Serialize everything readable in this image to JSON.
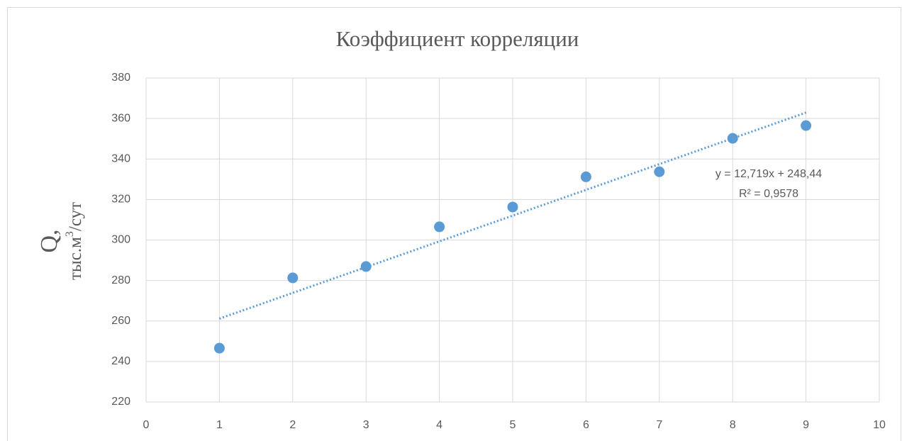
{
  "chart_data": {
    "type": "scatter",
    "title": "Коэффициент корреляции",
    "ylabel": [
      "Q,",
      "тыс.м",
      "3",
      "/сут"
    ],
    "series": [
      {
        "color": "#5b9bd5",
        "x": [
          1,
          2,
          3,
          4,
          5,
          6,
          7,
          8,
          9
        ],
        "values": [
          246.6,
          281.3,
          286.9,
          306.5,
          316.3,
          331.2,
          333.7,
          350.2,
          356.5
        ]
      }
    ],
    "trendline": {
      "slope": 12.719,
      "intercept": 248.44,
      "x": [
        1,
        9
      ],
      "color": "#5b9bd5",
      "equation": "y = 12,719x + 248,44",
      "r2": "R² = 0,9578"
    },
    "xlim": [
      0,
      10
    ],
    "xticks": [
      0,
      1,
      2,
      3,
      4,
      5,
      6,
      7,
      8,
      9,
      10
    ],
    "ylim": [
      220,
      380
    ],
    "yticks": [
      220,
      240,
      260,
      280,
      300,
      320,
      340,
      360,
      380
    ],
    "grid": true
  }
}
